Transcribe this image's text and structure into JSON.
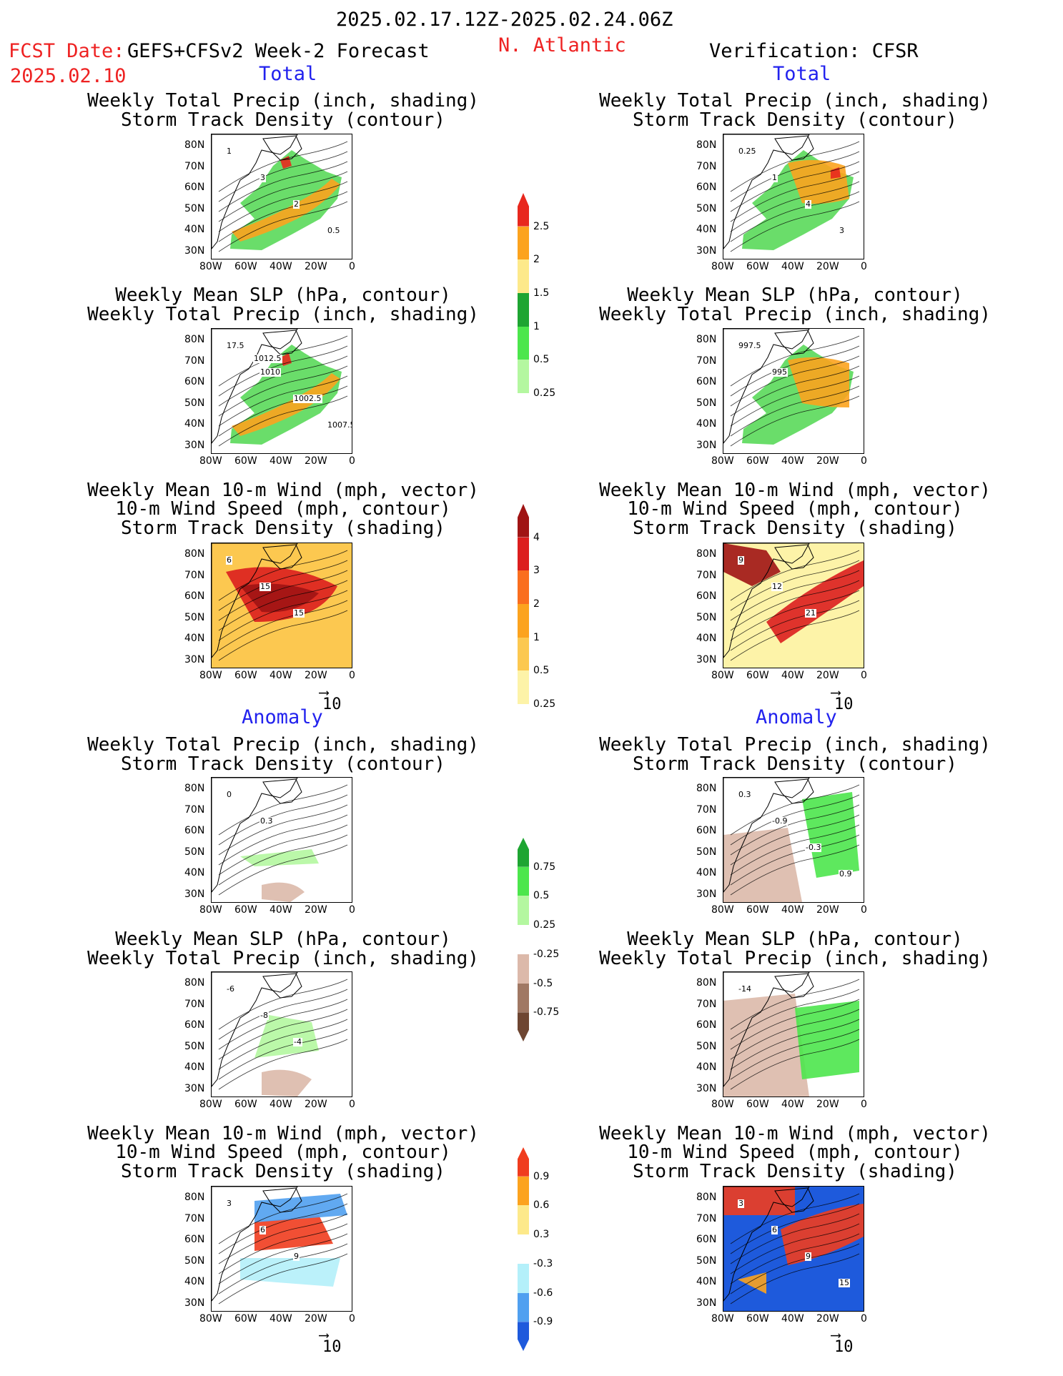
{
  "header": {
    "period": "2025.02.17.12Z-2025.02.24.06Z",
    "fcst_date_label": "FCST Date:",
    "fcst_date_value": "2025.02.10",
    "model": "GEFS+CFSv2 Week-2 Forecast",
    "region": "N. Atlantic",
    "verification": "Verification: CFSR"
  },
  "sections": {
    "total": "Total",
    "anomaly": "Anomaly"
  },
  "titles": {
    "precip_storm": [
      "Weekly Total Precip (inch, shading)",
      "Storm Track Density (contour)"
    ],
    "slp_precip": [
      "Weekly Mean SLP (hPa, contour)",
      "Weekly Total Precip (inch, shading)"
    ],
    "wind_storm": [
      "Weekly Mean 10-m Wind (mph, vector)",
      "10-m Wind Speed (mph, contour)",
      "Storm Track Density (shading)"
    ]
  },
  "axes": {
    "lat_labels": [
      "80N",
      "70N",
      "60N",
      "50N",
      "40N",
      "30N"
    ],
    "lon_labels": [
      "80W",
      "60W",
      "40W",
      "20W",
      "0"
    ]
  },
  "vector_ref": "10",
  "colorbars": {
    "precip_total": {
      "labels": [
        "2.5",
        "2",
        "1.5",
        "1",
        "0.5",
        "0.25"
      ],
      "colors": [
        "#e8281e",
        "#fca31e",
        "#fde98a",
        "#1ea532",
        "#4ce64c",
        "#b4f7a0"
      ]
    },
    "storm_total": {
      "labels": [
        "4",
        "3",
        "2",
        "1",
        "0.5",
        "0.25"
      ],
      "colors": [
        "#a01414",
        "#dc1e1e",
        "#fa6e1e",
        "#fca31e",
        "#fcc850",
        "#fdf3a8"
      ]
    },
    "precip_anom": {
      "labels": [
        "0.75",
        "0.5",
        "0.25",
        "-0.25",
        "-0.5",
        "-0.75"
      ],
      "colors": [
        "#1ea532",
        "#4ce64c",
        "#b4f7a0",
        "#ffffff",
        "#dcb9aa",
        "#a07864",
        "#6e4632"
      ]
    },
    "storm_anom": {
      "labels": [
        "0.9",
        "0.6",
        "0.3",
        "-0.3",
        "-0.6",
        "-0.9"
      ],
      "colors": [
        "#f03c1e",
        "#fca31e",
        "#fde98a",
        "#ffffff",
        "#b4f0fa",
        "#50a0f0",
        "#1e5adc"
      ]
    }
  },
  "contour_labels": {
    "fc_total_precip": [
      "1",
      "3",
      "2",
      "0.5"
    ],
    "vf_total_precip": [
      "0.25",
      "1",
      "4",
      "3"
    ],
    "fc_total_slp": [
      "17.5",
      "1010",
      "1002.5",
      "1007.5",
      "1012.5"
    ],
    "vf_total_slp": [
      "997.5",
      "995"
    ],
    "fc_total_wind": [
      "6",
      "15",
      "15"
    ],
    "vf_total_wind": [
      "9",
      "12",
      "21"
    ],
    "fc_anom_precip": [
      "0",
      "0.3"
    ],
    "vf_anom_precip": [
      "0.3",
      "-0.9",
      "-0.3",
      "0.9"
    ],
    "fc_anom_slp": [
      "-6",
      "-8",
      "-4"
    ],
    "vf_anom_slp": [
      "-14"
    ],
    "fc_anom_wind": [
      "3",
      "6",
      "9"
    ],
    "vf_anom_wind": [
      "3",
      "6",
      "9",
      "15"
    ]
  }
}
